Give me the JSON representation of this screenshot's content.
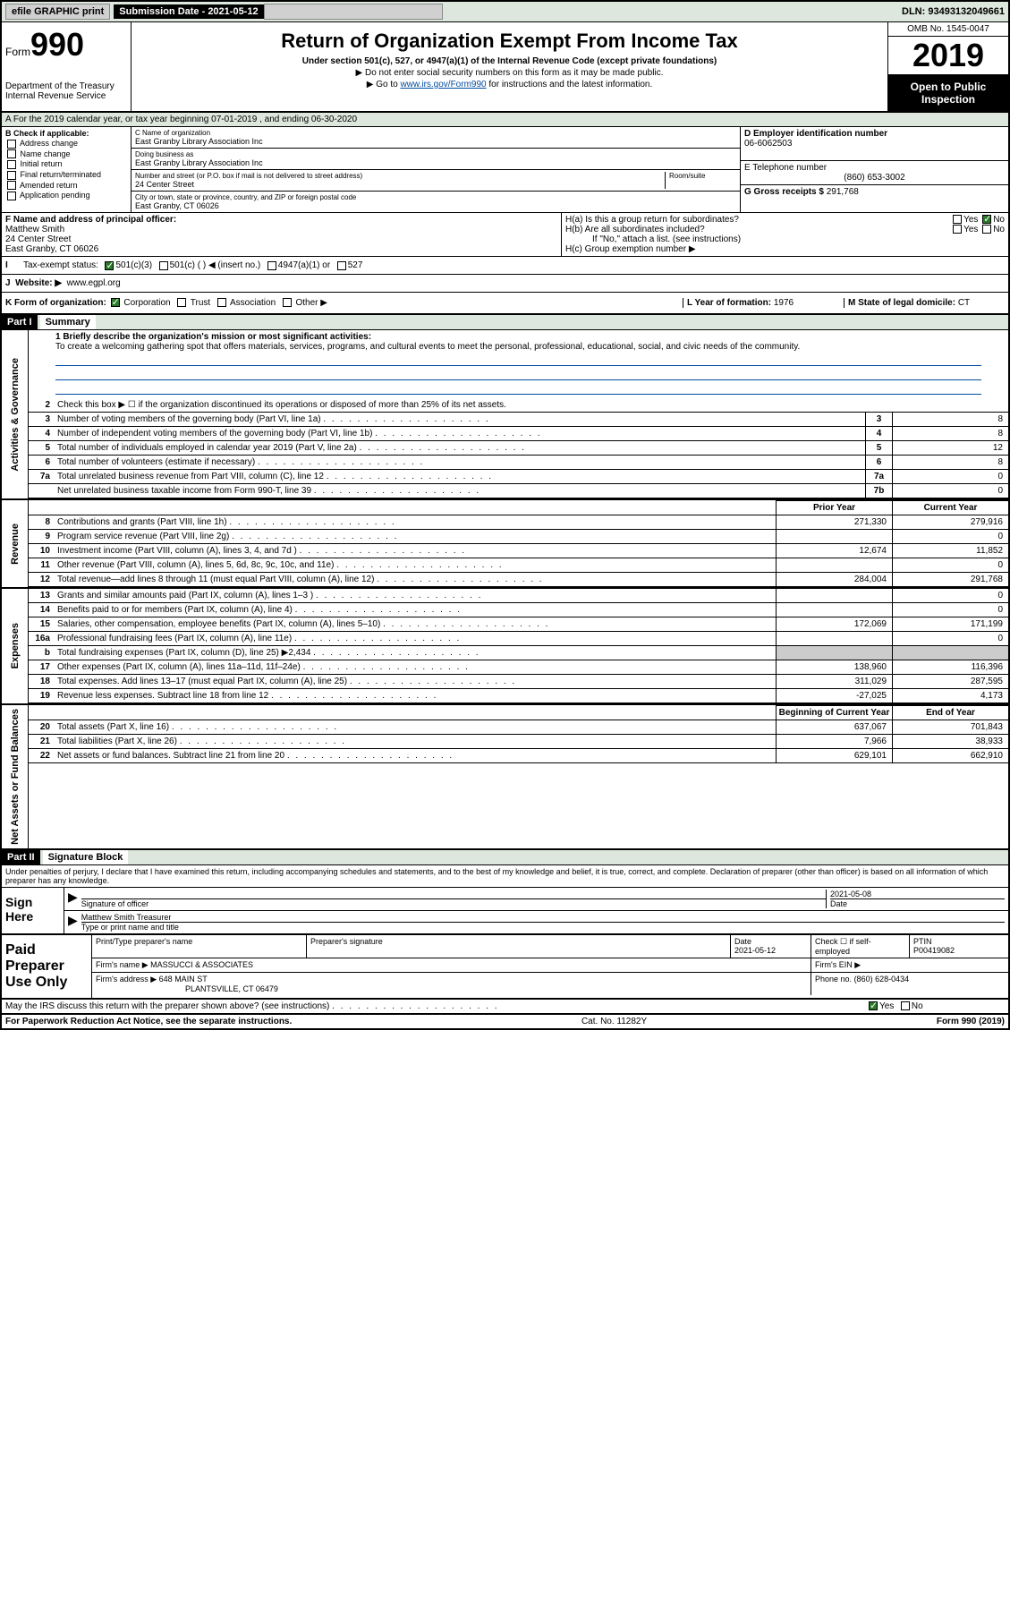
{
  "topbar": {
    "efile": "efile GRAPHIC print",
    "submission": "Submission Date - 2021-05-12",
    "dln": "DLN: 93493132049661"
  },
  "header": {
    "form_label": "Form",
    "form_num": "990",
    "dept": "Department of the Treasury\nInternal Revenue Service",
    "title": "Return of Organization Exempt From Income Tax",
    "subtitle": "Under section 501(c), 527, or 4947(a)(1) of the Internal Revenue Code (except private foundations)",
    "note1": "▶ Do not enter social security numbers on this form as it may be made public.",
    "note2_pre": "▶ Go to ",
    "note2_link": "www.irs.gov/Form990",
    "note2_post": " for instructions and the latest information.",
    "omb": "OMB No. 1545-0047",
    "year": "2019",
    "inspection": "Open to Public Inspection"
  },
  "row_a": "A For the 2019 calendar year, or tax year beginning 07-01-2019    , and ending 06-30-2020",
  "section_b": {
    "check_label": "B Check if applicable:",
    "checks": [
      "Address change",
      "Name change",
      "Initial return",
      "Final return/terminated",
      "Amended return",
      "Application pending"
    ],
    "c_label": "C Name of organization",
    "c_value": "East Granby Library Association Inc",
    "dba_label": "Doing business as",
    "dba_value": "East Granby Library Association Inc",
    "street_label": "Number and street (or P.O. box if mail is not delivered to street address)",
    "room_label": "Room/suite",
    "street_value": "24 Center Street",
    "city_label": "City or town, state or province, country, and ZIP or foreign postal code",
    "city_value": "East Granby, CT  06026",
    "d_label": "D Employer identification number",
    "d_value": "06-6062503",
    "e_label": "E Telephone number",
    "e_value": "(860) 653-3002",
    "g_label": "G Gross receipts $",
    "g_value": "291,768"
  },
  "section_f": {
    "f_label": "F  Name and address of principal officer:",
    "f_name": "Matthew Smith",
    "f_street": "24 Center Street",
    "f_city": "East Granby, CT  06026",
    "ha": "H(a)  Is this a group return for subordinates?",
    "hb": "H(b)  Are all subordinates included?",
    "hb_note": "If \"No,\" attach a list. (see instructions)",
    "hc": "H(c)  Group exemption number ▶",
    "yes": "Yes",
    "no": "No"
  },
  "tax_row": {
    "label": "Tax-exempt status:",
    "opt1": "501(c)(3)",
    "opt2": "501(c) (  ) ◀ (insert no.)",
    "opt3": "4947(a)(1) or",
    "opt4": "527"
  },
  "row_j": {
    "label": "J",
    "text": "Website: ▶",
    "value": "www.egpl.org"
  },
  "row_k": {
    "k_label": "K Form of organization:",
    "opts": [
      "Corporation",
      "Trust",
      "Association",
      "Other ▶"
    ],
    "l_label": "L Year of formation:",
    "l_value": "1976",
    "m_label": "M State of legal domicile:",
    "m_value": "CT"
  },
  "part1": {
    "header": "Part I",
    "title": "Summary",
    "line1_label": "1   Briefly describe the organization's mission or most significant activities:",
    "mission": "To create a welcoming gathering spot that offers materials, services, programs, and cultural events to meet the personal, professional, educational, social, and civic needs of the community.",
    "line2": "Check this box ▶ ☐  if the organization discontinued its operations or disposed of more than 25% of its net assets.",
    "sections": {
      "gov": "Activities & Governance",
      "rev": "Revenue",
      "exp": "Expenses",
      "net": "Net Assets or Fund Balances"
    },
    "col_prior": "Prior Year",
    "col_current": "Current Year",
    "col_begin": "Beginning of Current Year",
    "col_end": "End of Year",
    "lines_gov": [
      {
        "n": "3",
        "d": "Number of voting members of the governing body (Part VI, line 1a)",
        "box": "3",
        "v": "8"
      },
      {
        "n": "4",
        "d": "Number of independent voting members of the governing body (Part VI, line 1b)",
        "box": "4",
        "v": "8"
      },
      {
        "n": "5",
        "d": "Total number of individuals employed in calendar year 2019 (Part V, line 2a)",
        "box": "5",
        "v": "12"
      },
      {
        "n": "6",
        "d": "Total number of volunteers (estimate if necessary)",
        "box": "6",
        "v": "8"
      },
      {
        "n": "7a",
        "d": "Total unrelated business revenue from Part VIII, column (C), line 12",
        "box": "7a",
        "v": "0"
      },
      {
        "n": "",
        "d": "Net unrelated business taxable income from Form 990-T, line 39",
        "box": "7b",
        "v": "0"
      }
    ],
    "lines_rev": [
      {
        "n": "8",
        "d": "Contributions and grants (Part VIII, line 1h)",
        "p": "271,330",
        "c": "279,916"
      },
      {
        "n": "9",
        "d": "Program service revenue (Part VIII, line 2g)",
        "p": "",
        "c": "0"
      },
      {
        "n": "10",
        "d": "Investment income (Part VIII, column (A), lines 3, 4, and 7d )",
        "p": "12,674",
        "c": "11,852"
      },
      {
        "n": "11",
        "d": "Other revenue (Part VIII, column (A), lines 5, 6d, 8c, 9c, 10c, and 11e)",
        "p": "",
        "c": "0"
      },
      {
        "n": "12",
        "d": "Total revenue—add lines 8 through 11 (must equal Part VIII, column (A), line 12)",
        "p": "284,004",
        "c": "291,768"
      }
    ],
    "lines_exp": [
      {
        "n": "13",
        "d": "Grants and similar amounts paid (Part IX, column (A), lines 1–3 )",
        "p": "",
        "c": "0"
      },
      {
        "n": "14",
        "d": "Benefits paid to or for members (Part IX, column (A), line 4)",
        "p": "",
        "c": "0"
      },
      {
        "n": "15",
        "d": "Salaries, other compensation, employee benefits (Part IX, column (A), lines 5–10)",
        "p": "172,069",
        "c": "171,199"
      },
      {
        "n": "16a",
        "d": "Professional fundraising fees (Part IX, column (A), line 11e)",
        "p": "",
        "c": "0"
      },
      {
        "n": "b",
        "d": "Total fundraising expenses (Part IX, column (D), line 25) ▶2,434",
        "p": "shade",
        "c": "shade"
      },
      {
        "n": "17",
        "d": "Other expenses (Part IX, column (A), lines 11a–11d, 11f–24e)",
        "p": "138,960",
        "c": "116,396"
      },
      {
        "n": "18",
        "d": "Total expenses. Add lines 13–17 (must equal Part IX, column (A), line 25)",
        "p": "311,029",
        "c": "287,595"
      },
      {
        "n": "19",
        "d": "Revenue less expenses. Subtract line 18 from line 12",
        "p": "-27,025",
        "c": "4,173"
      }
    ],
    "lines_net": [
      {
        "n": "20",
        "d": "Total assets (Part X, line 16)",
        "p": "637,067",
        "c": "701,843"
      },
      {
        "n": "21",
        "d": "Total liabilities (Part X, line 26)",
        "p": "7,966",
        "c": "38,933"
      },
      {
        "n": "22",
        "d": "Net assets or fund balances. Subtract line 21 from line 20",
        "p": "629,101",
        "c": "662,910"
      }
    ]
  },
  "part2": {
    "header": "Part II",
    "title": "Signature Block",
    "declaration": "Under penalties of perjury, I declare that I have examined this return, including accompanying schedules and statements, and to the best of my knowledge and belief, it is true, correct, and complete. Declaration of preparer (other than officer) is based on all information of which preparer has any knowledge.",
    "sign_here": "Sign Here",
    "sig_officer": "Signature of officer",
    "sig_date": "2021-05-08",
    "sig_date_label": "Date",
    "sig_name": "Matthew Smith Treasurer",
    "sig_name_label": "Type or print name and title",
    "paid_label": "Paid Preparer Use Only",
    "prep_name_label": "Print/Type preparer's name",
    "prep_sig_label": "Preparer's signature",
    "prep_date_label": "Date",
    "prep_date": "2021-05-12",
    "prep_check": "Check ☐ if self-employed",
    "ptin_label": "PTIN",
    "ptin": "P00419082",
    "firm_name_label": "Firm's name    ▶",
    "firm_name": "MASSUCCI & ASSOCIATES",
    "firm_ein_label": "Firm's EIN ▶",
    "firm_addr_label": "Firm's address ▶",
    "firm_addr1": "648 MAIN ST",
    "firm_addr2": "PLANTSVILLE, CT  06479",
    "firm_phone_label": "Phone no.",
    "firm_phone": "(860) 628-0434",
    "discuss": "May the IRS discuss this return with the preparer shown above? (see instructions)"
  },
  "footer": {
    "left": "For Paperwork Reduction Act Notice, see the separate instructions.",
    "mid": "Cat. No. 11282Y",
    "right": "Form 990 (2019)"
  }
}
